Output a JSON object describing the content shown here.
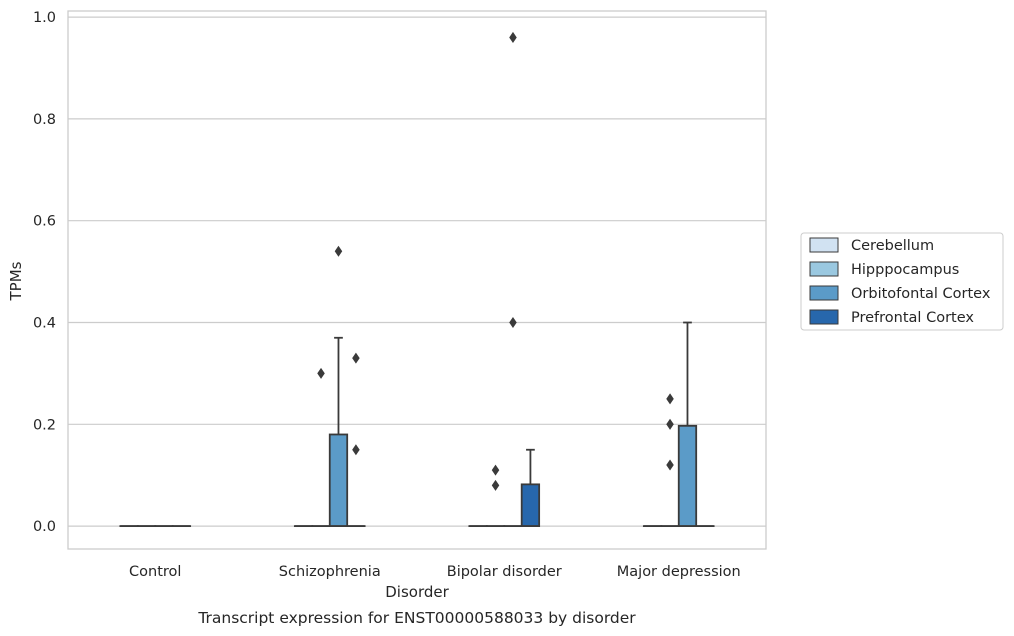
{
  "caption": "Transcript expression for ENST00000588033 by disorder",
  "colors": {
    "Cerebellum": "#d1e2f2",
    "Hipppocampus": "#9ac8e0",
    "Orbitofontal Cortex": "#5b9bc8",
    "Prefrontal Cortex": "#2767ac",
    "edge": "#3a3a3a",
    "grid": "#cccccc"
  },
  "chart_data": {
    "type": "box",
    "title": "",
    "xlabel": "Disorder",
    "ylabel": "TPMs",
    "categories": [
      "Control",
      "Schizophrenia",
      "Bipolar disorder",
      "Major depression"
    ],
    "ylim": [
      -0.045,
      1.012
    ],
    "yticks": [
      "0.0",
      "0.2",
      "0.4",
      "0.6",
      "0.8",
      "1.0"
    ],
    "grid": "horizontal",
    "legend_position": "right",
    "series": [
      {
        "name": "Cerebellum",
        "boxes": [
          {
            "category": "Control",
            "q1": 0,
            "median": 0,
            "q3": 0,
            "whislo": 0,
            "whishi": 0,
            "fliers": []
          },
          {
            "category": "Schizophrenia",
            "q1": 0,
            "median": 0,
            "q3": 0,
            "whislo": 0,
            "whishi": 0,
            "fliers": []
          },
          {
            "category": "Bipolar disorder",
            "q1": 0,
            "median": 0,
            "q3": 0,
            "whislo": 0,
            "whishi": 0,
            "fliers": []
          },
          {
            "category": "Major depression",
            "q1": 0,
            "median": 0,
            "q3": 0,
            "whislo": 0,
            "whishi": 0,
            "fliers": []
          }
        ]
      },
      {
        "name": "Hipppocampus",
        "boxes": [
          {
            "category": "Control",
            "q1": 0,
            "median": 0,
            "q3": 0,
            "whislo": 0,
            "whishi": 0,
            "fliers": []
          },
          {
            "category": "Schizophrenia",
            "q1": 0,
            "median": 0,
            "q3": 0,
            "whislo": 0,
            "whishi": 0,
            "fliers": [
              0.3
            ]
          },
          {
            "category": "Bipolar disorder",
            "q1": 0,
            "median": 0,
            "q3": 0,
            "whislo": 0,
            "whishi": 0,
            "fliers": [
              0.11,
              0.08
            ]
          },
          {
            "category": "Major depression",
            "q1": 0,
            "median": 0,
            "q3": 0,
            "whislo": 0,
            "whishi": 0,
            "fliers": [
              0.25,
              0.2,
              0.12
            ]
          }
        ]
      },
      {
        "name": "Orbitofontal Cortex",
        "boxes": [
          {
            "category": "Control",
            "q1": 0,
            "median": 0,
            "q3": 0,
            "whislo": 0,
            "whishi": 0,
            "fliers": []
          },
          {
            "category": "Schizophrenia",
            "q1": 0,
            "median": 0,
            "q3": 0.18,
            "whislo": 0,
            "whishi": 0.37,
            "fliers": [
              0.54
            ]
          },
          {
            "category": "Bipolar disorder",
            "q1": 0,
            "median": 0,
            "q3": 0,
            "whislo": 0,
            "whishi": 0,
            "fliers": [
              0.96,
              0.4
            ]
          },
          {
            "category": "Major depression",
            "q1": 0,
            "median": 0,
            "q3": 0.197,
            "whislo": 0,
            "whishi": 0.4,
            "fliers": []
          }
        ]
      },
      {
        "name": "Prefrontal Cortex",
        "boxes": [
          {
            "category": "Control",
            "q1": 0,
            "median": 0,
            "q3": 0,
            "whislo": 0,
            "whishi": 0,
            "fliers": []
          },
          {
            "category": "Schizophrenia",
            "q1": 0,
            "median": 0,
            "q3": 0,
            "whislo": 0,
            "whishi": 0,
            "fliers": [
              0.33,
              0.15
            ]
          },
          {
            "category": "Bipolar disorder",
            "q1": 0,
            "median": 0,
            "q3": 0.082,
            "whislo": 0,
            "whishi": 0.15,
            "fliers": []
          },
          {
            "category": "Major depression",
            "q1": 0,
            "median": 0,
            "q3": 0,
            "whislo": 0,
            "whishi": 0,
            "fliers": []
          }
        ]
      }
    ]
  }
}
